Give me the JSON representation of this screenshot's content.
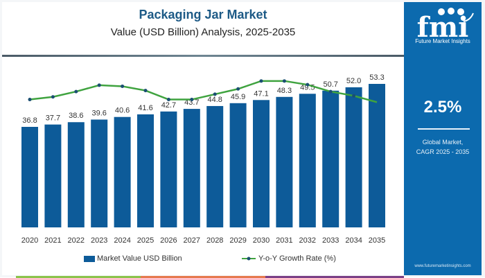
{
  "title": "Packaging Jar Market",
  "subtitle": "Value (USD Billion) Analysis, 2025-2035",
  "brand": {
    "logo_text": "fmi",
    "tagline": "Future Market Insights",
    "website": "www.futuremarketinsights.com"
  },
  "cagr": {
    "value": "2.5%",
    "label_line1": "Global Market,",
    "label_line2": "CAGR 2025 - 2035"
  },
  "colors": {
    "bar": "#0d5b99",
    "line": "#3fa33f",
    "marker": "#1b4f72",
    "panel": "#0c6aae",
    "title": "#1d5a86"
  },
  "chart_data": {
    "type": "bar",
    "title": "Packaging Jar Market",
    "subtitle": "Value (USD Billion) Analysis, 2025-2035",
    "categories": [
      "2020",
      "2021",
      "2022",
      "2023",
      "2024",
      "2025",
      "2026",
      "2027",
      "2028",
      "2029",
      "2030",
      "2031",
      "2032",
      "2033",
      "2034",
      "2035"
    ],
    "series": [
      {
        "name": "Market Value USD Billion",
        "type": "bar",
        "values": [
          36.8,
          37.7,
          38.6,
          39.6,
          40.6,
          41.6,
          42.7,
          43.7,
          44.8,
          45.9,
          47.1,
          48.3,
          49.5,
          50.7,
          52.0,
          53.3
        ],
        "labels": [
          "36.8",
          "37.7",
          "38.6",
          "39.6",
          "40.6",
          "41.6",
          "42.7",
          "43.7",
          "44.8",
          "45.9",
          "47.1",
          "48.3",
          "49.5",
          "50.7",
          "52.0",
          "53.3"
        ]
      },
      {
        "name": "Y-o-Y Growth Rate (%)",
        "type": "line",
        "values": [
          2.45,
          2.5,
          2.6,
          2.72,
          2.7,
          2.62,
          2.45,
          2.45,
          2.55,
          2.65,
          2.8,
          2.8,
          2.73,
          2.6,
          2.52,
          2.4
        ]
      }
    ],
    "xlabel": "",
    "ylabel": "",
    "grid": false,
    "legend": "bottom"
  },
  "legend": {
    "bar_label": "Market Value USD Billion",
    "line_label": "Y-o-Y Growth Rate (%)"
  }
}
